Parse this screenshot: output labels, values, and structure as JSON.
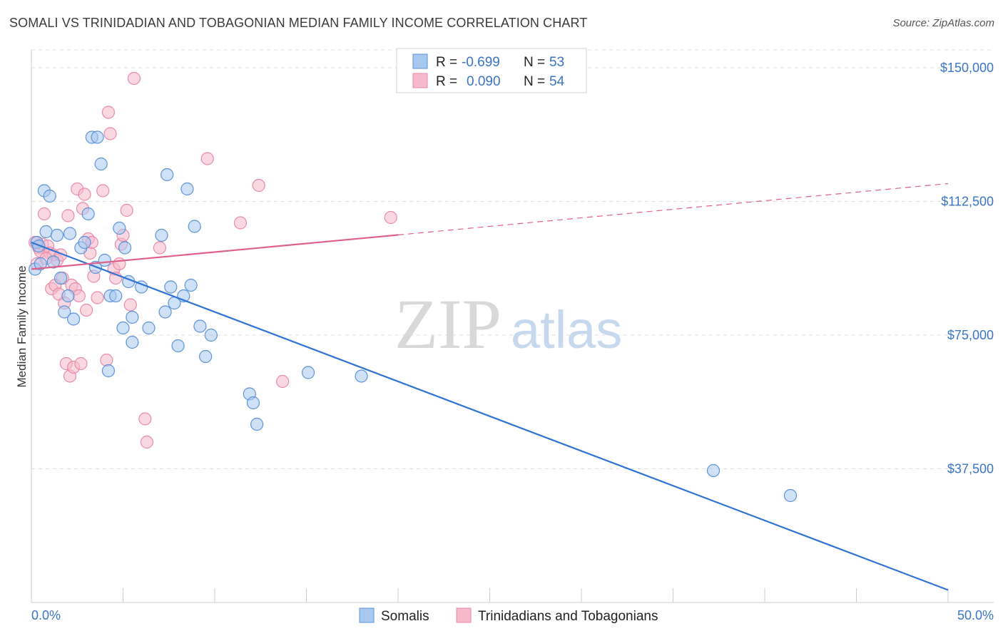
{
  "header": {
    "title": "SOMALI VS TRINIDADIAN AND TOBAGONIAN MEDIAN FAMILY INCOME CORRELATION CHART",
    "source": "Source: ZipAtlas.com"
  },
  "watermark": {
    "zip": "ZIP",
    "atlas": "atlas"
  },
  "colors": {
    "blue_fill": "#a8c8f0",
    "blue_stroke": "#5b93d6",
    "blue_line": "#2e72d2",
    "pink_fill": "#f6b8cb",
    "pink_stroke": "#e88aa8",
    "pink_line": "#e0608c",
    "grid": "#dddddd",
    "axis_text": "#3a74c4"
  },
  "legend": {
    "rows": [
      {
        "r_label": "R =",
        "r_value": "-0.699",
        "n_label": "N =",
        "n_value": "53"
      },
      {
        "r_label": "R =",
        "r_value": "0.090",
        "n_label": "N =",
        "n_value": "54"
      }
    ]
  },
  "chart_data": {
    "type": "scatter",
    "title": "SOMALI VS TRINIDADIAN AND TOBAGONIAN MEDIAN FAMILY INCOME CORRELATION CHART",
    "xlabel": "",
    "ylabel": "Median Family Income",
    "xlim": [
      0,
      50
    ],
    "ylim": [
      0,
      155000
    ],
    "x_tick_labels": [
      "0.0%",
      "50.0%"
    ],
    "y_ticks": [
      37500,
      75000,
      112500,
      150000
    ],
    "y_tick_labels": [
      "$37,500",
      "$75,000",
      "$112,500",
      "$150,000"
    ],
    "grid": true,
    "legend_position": "top-center",
    "series": [
      {
        "name": "Somalis",
        "r": -0.699,
        "n": 53,
        "trend": {
          "x": [
            0,
            50
          ],
          "y": [
            101000,
            3500
          ],
          "dashed_from": null
        },
        "points": [
          [
            0.2,
            93500
          ],
          [
            0.3,
            101000
          ],
          [
            0.5,
            95000
          ],
          [
            0.7,
            115500
          ],
          [
            0.8,
            104000
          ],
          [
            1.0,
            114000
          ],
          [
            1.2,
            95500
          ],
          [
            1.4,
            103000
          ],
          [
            1.6,
            91000
          ],
          [
            1.8,
            81500
          ],
          [
            2.0,
            86000
          ],
          [
            2.1,
            103500
          ],
          [
            2.3,
            79500
          ],
          [
            2.7,
            99500
          ],
          [
            2.9,
            101000
          ],
          [
            3.1,
            109000
          ],
          [
            3.3,
            130500
          ],
          [
            3.5,
            94000
          ],
          [
            3.6,
            130500
          ],
          [
            3.8,
            123000
          ],
          [
            4.0,
            96000
          ],
          [
            4.2,
            65000
          ],
          [
            4.3,
            86000
          ],
          [
            4.6,
            86000
          ],
          [
            4.8,
            105000
          ],
          [
            5.0,
            77000
          ],
          [
            5.1,
            99500
          ],
          [
            5.3,
            90000
          ],
          [
            5.5,
            73000
          ],
          [
            5.5,
            80000
          ],
          [
            6.0,
            88500
          ],
          [
            6.4,
            77000
          ],
          [
            7.1,
            103000
          ],
          [
            7.3,
            81500
          ],
          [
            7.4,
            120000
          ],
          [
            7.6,
            88500
          ],
          [
            7.8,
            84000
          ],
          [
            8.0,
            72000
          ],
          [
            8.3,
            86000
          ],
          [
            8.5,
            116000
          ],
          [
            8.7,
            89000
          ],
          [
            8.9,
            105500
          ],
          [
            9.2,
            77500
          ],
          [
            9.5,
            69000
          ],
          [
            9.8,
            75000
          ],
          [
            11.9,
            58500
          ],
          [
            12.1,
            56000
          ],
          [
            12.3,
            50000
          ],
          [
            15.1,
            64500
          ],
          [
            18.0,
            63500
          ],
          [
            37.2,
            37000
          ],
          [
            41.4,
            30000
          ],
          [
            0.4,
            100000
          ]
        ]
      },
      {
        "name": "Trinidadians and Tobagonians",
        "r": 0.09,
        "n": 54,
        "trend": {
          "x": [
            0,
            50
          ],
          "y": [
            93500,
            117500
          ],
          "dashed_from": 20
        },
        "points": [
          [
            0.2,
            101000
          ],
          [
            0.3,
            95000
          ],
          [
            0.4,
            99500
          ],
          [
            0.5,
            98500
          ],
          [
            0.6,
            100500
          ],
          [
            0.7,
            109000
          ],
          [
            0.9,
            100000
          ],
          [
            1.0,
            98000
          ],
          [
            1.1,
            88000
          ],
          [
            1.2,
            97500
          ],
          [
            1.3,
            89000
          ],
          [
            1.4,
            96000
          ],
          [
            1.5,
            86500
          ],
          [
            1.6,
            97500
          ],
          [
            1.7,
            91000
          ],
          [
            1.8,
            84000
          ],
          [
            1.9,
            67000
          ],
          [
            2.0,
            108500
          ],
          [
            2.1,
            63500
          ],
          [
            2.2,
            89000
          ],
          [
            2.3,
            66000
          ],
          [
            2.4,
            88000
          ],
          [
            2.5,
            116000
          ],
          [
            2.6,
            86000
          ],
          [
            2.7,
            67000
          ],
          [
            2.8,
            110500
          ],
          [
            2.9,
            114500
          ],
          [
            3.0,
            82000
          ],
          [
            3.1,
            102000
          ],
          [
            3.2,
            98000
          ],
          [
            3.4,
            91500
          ],
          [
            3.6,
            85500
          ],
          [
            3.9,
            115500
          ],
          [
            4.1,
            68000
          ],
          [
            4.2,
            137500
          ],
          [
            4.3,
            131500
          ],
          [
            4.5,
            93500
          ],
          [
            4.6,
            91000
          ],
          [
            4.8,
            95000
          ],
          [
            4.9,
            100500
          ],
          [
            5.0,
            103000
          ],
          [
            5.2,
            110000
          ],
          [
            5.4,
            83500
          ],
          [
            5.6,
            147000
          ],
          [
            6.2,
            51500
          ],
          [
            6.3,
            45000
          ],
          [
            7.0,
            99500
          ],
          [
            9.6,
            124500
          ],
          [
            11.4,
            106500
          ],
          [
            12.4,
            117000
          ],
          [
            13.7,
            62000
          ],
          [
            19.6,
            108000
          ],
          [
            0.8,
            96500
          ],
          [
            3.3,
            101000
          ]
        ]
      }
    ]
  },
  "bottom_legend": {
    "items": [
      {
        "label": "Somalis"
      },
      {
        "label": "Trinidadians and Tobagonians"
      }
    ]
  }
}
